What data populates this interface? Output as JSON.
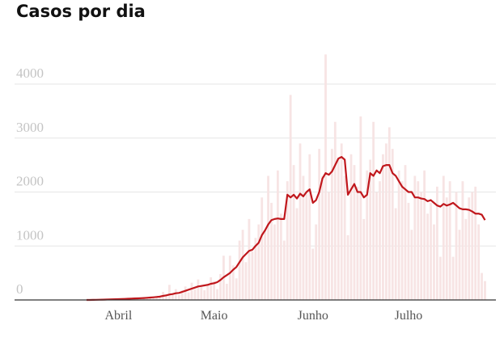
{
  "chart_data": {
    "type": "bar",
    "title": "Casos por dia",
    "categories": [
      null,
      null,
      null,
      null,
      null,
      null,
      null,
      null,
      null,
      null,
      "Abril",
      null,
      null,
      null,
      null,
      null,
      null,
      null,
      null,
      null,
      null,
      null,
      null,
      null,
      null,
      null,
      null,
      null,
      null,
      null,
      null,
      null,
      null,
      null,
      null,
      null,
      null,
      null,
      null,
      null,
      "Maio",
      null,
      null,
      null,
      null,
      null,
      null,
      null,
      null,
      null,
      null,
      null,
      null,
      null,
      null,
      null,
      null,
      null,
      null,
      null,
      null,
      null,
      null,
      null,
      null,
      null,
      null,
      null,
      null,
      null,
      null,
      "Junho",
      null,
      null,
      null,
      null,
      null,
      null,
      null,
      null,
      null,
      null,
      null,
      null,
      null,
      null,
      null,
      null,
      null,
      null,
      null,
      null,
      null,
      null,
      null,
      null,
      null,
      null,
      null,
      null,
      null,
      "Julho",
      null,
      null,
      null,
      null,
      null,
      null,
      null,
      null,
      null,
      null,
      null,
      null,
      null,
      null,
      null,
      null,
      null,
      null,
      null,
      null,
      null,
      null,
      null,
      null
    ],
    "series": [
      {
        "type": "bar",
        "color": "#f7e4e4",
        "values": [
          0,
          0,
          5,
          0,
          10,
          5,
          15,
          10,
          20,
          15,
          25,
          15,
          30,
          20,
          40,
          25,
          30,
          50,
          35,
          40,
          60,
          45,
          80,
          55,
          150,
          100,
          280,
          120,
          200,
          90,
          180,
          250,
          140,
          320,
          200,
          380,
          260,
          180,
          300,
          420,
          350,
          200,
          480,
          820,
          300,
          820,
          640,
          400,
          1100,
          1300,
          700,
          1500,
          900,
          1150,
          1400,
          1900,
          1300,
          2300,
          1800,
          1400,
          2400,
          1600,
          1100,
          2200,
          3800,
          2500,
          1700,
          2900,
          2300,
          2000,
          2700,
          950,
          1400,
          2800,
          2300,
          4550,
          2000,
          2800,
          3300,
          2600,
          2900,
          2300,
          1200,
          2700,
          2500,
          2100,
          3400,
          1500,
          2400,
          2600,
          3300,
          2000,
          2200,
          2700,
          2900,
          3200,
          2800,
          1700,
          2400,
          2200,
          2500,
          1800,
          1300,
          2300,
          2200,
          2000,
          2400,
          1600,
          1800,
          1400,
          2100,
          800,
          2300,
          1900,
          2200,
          800,
          2000,
          1300,
          2200,
          1500,
          1900,
          2000,
          2100,
          1400,
          500,
          350
        ]
      },
      {
        "type": "line",
        "color": "#c0171c",
        "values": [
          0,
          0,
          2,
          3,
          5,
          6,
          8,
          10,
          12,
          14,
          16,
          18,
          20,
          22,
          25,
          28,
          30,
          33,
          36,
          40,
          45,
          50,
          55,
          62,
          75,
          85,
          100,
          110,
          125,
          130,
          150,
          170,
          190,
          210,
          230,
          250,
          260,
          270,
          280,
          300,
          310,
          330,
          370,
          420,
          460,
          500,
          560,
          610,
          700,
          790,
          850,
          910,
          930,
          1000,
          1060,
          1200,
          1290,
          1400,
          1480,
          1500,
          1510,
          1500,
          1500,
          1950,
          1900,
          1950,
          1880,
          1970,
          1920,
          2000,
          2050,
          1800,
          1850,
          2000,
          2250,
          2350,
          2320,
          2380,
          2500,
          2620,
          2650,
          2600,
          1950,
          2050,
          2150,
          2000,
          2000,
          1900,
          1950,
          2350,
          2300,
          2400,
          2350,
          2480,
          2500,
          2500,
          2350,
          2300,
          2200,
          2100,
          2050,
          2000,
          2000,
          1900,
          1900,
          1880,
          1870,
          1830,
          1850,
          1800,
          1750,
          1730,
          1780,
          1750,
          1770,
          1800,
          1750,
          1700,
          1680,
          1680,
          1670,
          1640,
          1600,
          1600,
          1580,
          1480
        ]
      }
    ],
    "ylim": [
      0,
      4600
    ],
    "yticks": [
      0,
      1000,
      2000,
      3000,
      4000
    ],
    "grid": true
  }
}
